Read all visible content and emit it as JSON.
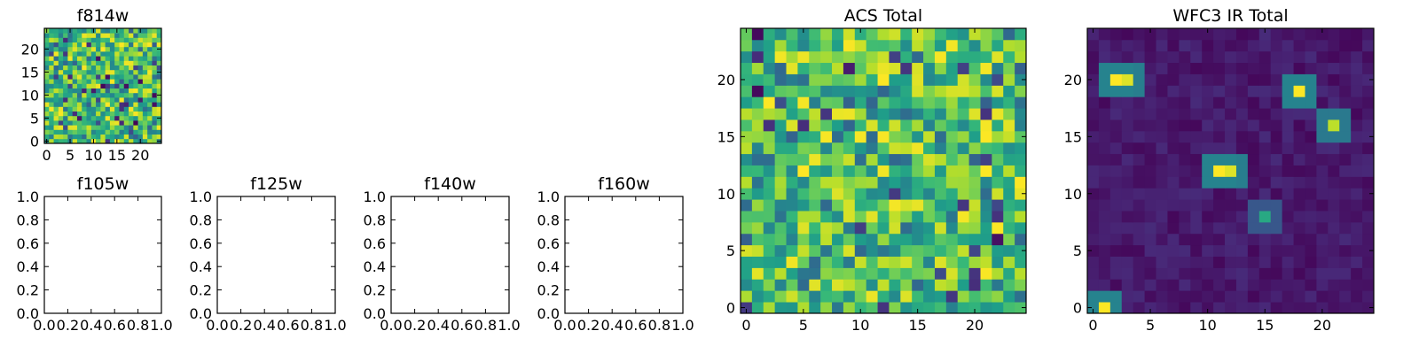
{
  "chart_data": [
    {
      "type": "heatmap",
      "title": "f814w",
      "grid_size": 25,
      "seed": 814,
      "pattern": "noise",
      "xticks": [
        0,
        5,
        10,
        15,
        20
      ],
      "yticks": [
        0,
        5,
        10,
        15,
        20
      ],
      "colormap": "viridis"
    },
    {
      "type": "empty",
      "title": "f105w",
      "xlim": [
        0.0,
        1.0
      ],
      "ylim": [
        0.0,
        1.0
      ],
      "xticks": [
        "0.0",
        "0.2",
        "0.4",
        "0.6",
        "0.8",
        "1.0"
      ],
      "yticks": [
        "0.0",
        "0.2",
        "0.4",
        "0.6",
        "0.8",
        "1.0"
      ]
    },
    {
      "type": "empty",
      "title": "f125w",
      "xlim": [
        0.0,
        1.0
      ],
      "ylim": [
        0.0,
        1.0
      ],
      "xticks": [
        "0.0",
        "0.2",
        "0.4",
        "0.6",
        "0.8",
        "1.0"
      ],
      "yticks": [
        "0.0",
        "0.2",
        "0.4",
        "0.6",
        "0.8",
        "1.0"
      ]
    },
    {
      "type": "empty",
      "title": "f140w",
      "xlim": [
        0.0,
        1.0
      ],
      "ylim": [
        0.0,
        1.0
      ],
      "xticks": [
        "0.0",
        "0.2",
        "0.4",
        "0.6",
        "0.8",
        "1.0"
      ],
      "yticks": [
        "0.0",
        "0.2",
        "0.4",
        "0.6",
        "0.8",
        "1.0"
      ]
    },
    {
      "type": "empty",
      "title": "f160w",
      "xlim": [
        0.0,
        1.0
      ],
      "ylim": [
        0.0,
        1.0
      ],
      "xticks": [
        "0.0",
        "0.2",
        "0.4",
        "0.6",
        "0.8",
        "1.0"
      ],
      "yticks": [
        "0.0",
        "0.2",
        "0.4",
        "0.6",
        "0.8",
        "1.0"
      ]
    },
    {
      "type": "heatmap",
      "title": "ACS Total",
      "grid_size": 25,
      "seed": 2024,
      "pattern": "noise",
      "xticks": [
        0,
        5,
        10,
        15,
        20
      ],
      "yticks": [
        0,
        5,
        10,
        15,
        20
      ],
      "colormap": "viridis"
    },
    {
      "type": "heatmap",
      "title": "WFC3 IR Total",
      "grid_size": 25,
      "seed": 3,
      "pattern": "sources",
      "sources": [
        {
          "x": 2,
          "y": 20,
          "peak": 1.0
        },
        {
          "x": 3,
          "y": 20,
          "peak": 0.95
        },
        {
          "x": 18,
          "y": 19,
          "peak": 1.0
        },
        {
          "x": 21,
          "y": 16,
          "peak": 0.9
        },
        {
          "x": 11,
          "y": 12,
          "peak": 1.0
        },
        {
          "x": 12,
          "y": 12,
          "peak": 0.95
        },
        {
          "x": 15,
          "y": 8,
          "peak": 0.6
        },
        {
          "x": 1,
          "y": 0,
          "peak": 1.0
        }
      ],
      "xticks": [
        0,
        5,
        10,
        15,
        20
      ],
      "yticks": [
        0,
        5,
        10,
        15,
        20
      ],
      "colormap": "viridis"
    }
  ]
}
